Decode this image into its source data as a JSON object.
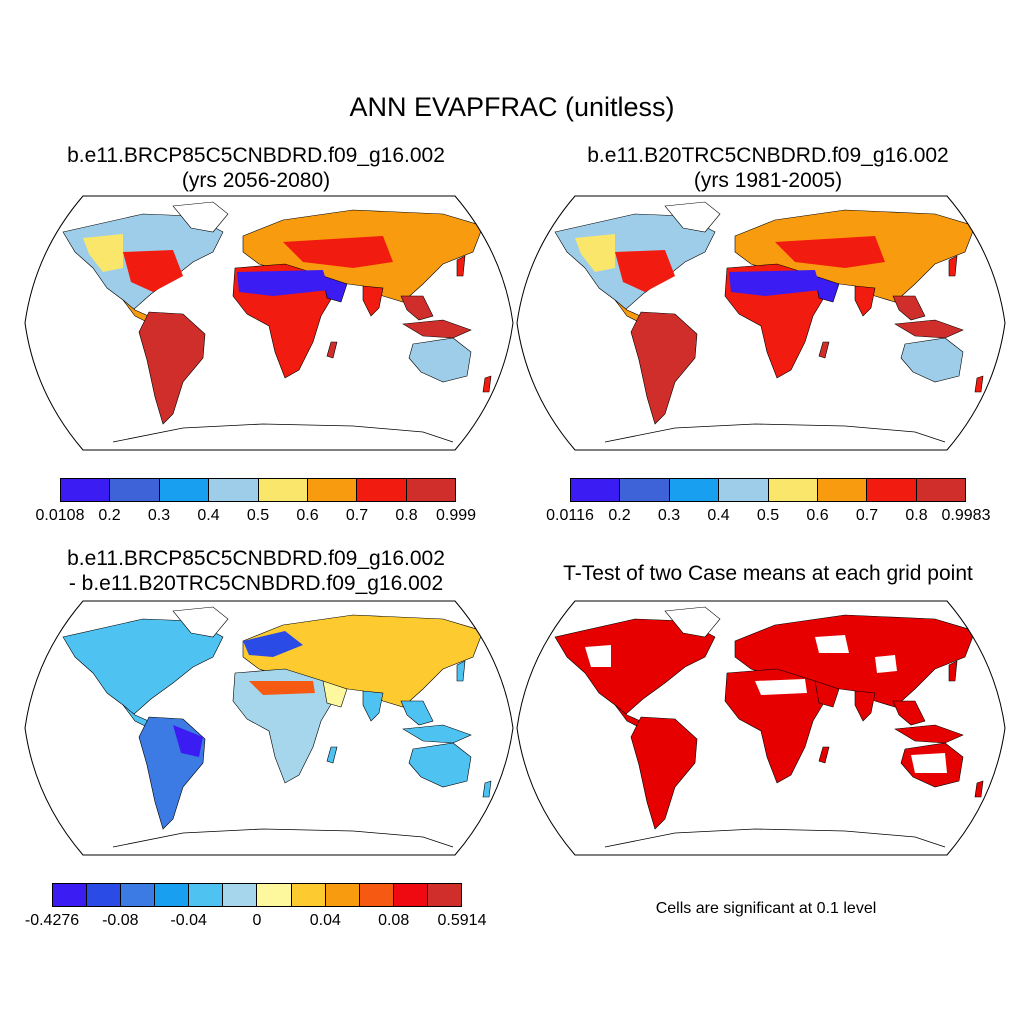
{
  "figure": {
    "title": "ANN EVAPFRAC (unitless)"
  },
  "panels": [
    {
      "title_line1": "b.e11.BRCP85C5CNBDRD.f09_g16.002",
      "title_line2": "(yrs 2056-2080)",
      "colorbar": {
        "colors": [
          "#3b1cf2",
          "#3e63d8",
          "#199ff0",
          "#9dcde8",
          "#fbe66c",
          "#f99b0e",
          "#f11b0f",
          "#d02e2b"
        ],
        "labels": [
          "0.0108",
          "0.2",
          "0.3",
          "0.4",
          "0.5",
          "0.6",
          "0.7",
          "0.8",
          "0.999"
        ]
      }
    },
    {
      "title_line1": "b.e11.B20TRC5CNBDRD.f09_g16.002",
      "title_line2": "(yrs 1981-2005)",
      "colorbar": {
        "colors": [
          "#3b1cf2",
          "#3e63d8",
          "#199ff0",
          "#9dcde8",
          "#fbe66c",
          "#f99b0e",
          "#f11b0f",
          "#d02e2b"
        ],
        "labels": [
          "0.0116",
          "0.2",
          "0.3",
          "0.4",
          "0.5",
          "0.6",
          "0.7",
          "0.8",
          "0.9983"
        ]
      }
    },
    {
      "title_line1": "b.e11.BRCP85C5CNBDRD.f09_g16.002",
      "title_line2": "- b.e11.B20TRC5CNBDRD.f09_g16.002",
      "colorbar": {
        "colors": [
          "#3b1cf2",
          "#2b4be6",
          "#3c7be3",
          "#199ff0",
          "#4ec3f2",
          "#a6d6ec",
          "#fdf79e",
          "#fdcb2f",
          "#f99b0e",
          "#f65a12",
          "#ee0a10",
          "#d02e2b"
        ],
        "labels": [
          "-0.4276",
          "-0.08",
          "-0.04",
          "0",
          "0.04",
          "0.08",
          "0.5914"
        ]
      }
    },
    {
      "title_line1": "T-Test of two Case means at each grid point",
      "note": "Cells are significant at 0.1 level",
      "significant_color": "#e60000"
    }
  ]
}
